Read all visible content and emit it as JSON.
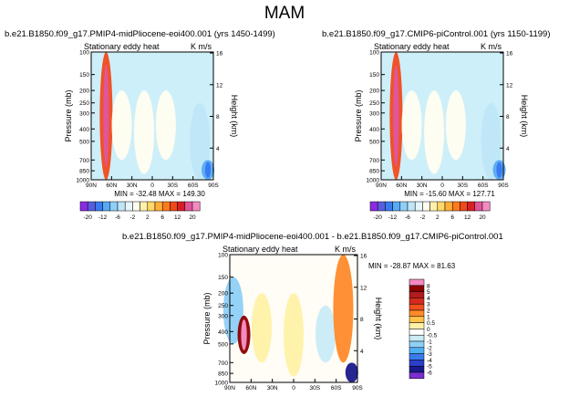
{
  "page_title": "MAM",
  "colors": {
    "background": "#ffffff",
    "ocean_fill": "#cdeffa",
    "axis": "#000000"
  },
  "chart_data": [
    {
      "type": "heatmap",
      "id": "panel-top-left",
      "title": "b.e21.B1850.f09_g17.PMIP4-midPliocene-eoi400.001 (yrs 1450-1499)",
      "subtitle_left": "Stationary eddy heat",
      "subtitle_right": "K m/s",
      "xlabel": "",
      "ylabel": "Pressure (mb)",
      "ylabel_right": "Height (km)",
      "x_ticks": [
        "90N",
        "60N",
        "30N",
        "0",
        "30S",
        "60S",
        "90S"
      ],
      "y_ticks": [
        "100",
        "150",
        "200",
        "250",
        "300",
        "400",
        "500",
        "700",
        "850",
        "1000"
      ],
      "y_right_ticks": [
        "16",
        "12",
        "8",
        "4"
      ],
      "stats": "MIN = -32.48   MAX = 149.30",
      "features": [
        {
          "lat": 68,
          "p_top": 100,
          "p_bot": 1000,
          "value": 12
        },
        {
          "lat": 45,
          "p_top": 200,
          "p_bot": 700,
          "value": 1
        },
        {
          "lat": 12,
          "p_top": 200,
          "p_bot": 900,
          "value": 0.5
        },
        {
          "lat": -20,
          "p_top": 200,
          "p_bot": 700,
          "value": 0.5
        },
        {
          "lat": -70,
          "p_top": 250,
          "p_bot": 1000,
          "value": -3
        },
        {
          "lat": -82,
          "p_top": 700,
          "p_bot": 1000,
          "value": -6
        }
      ]
    },
    {
      "type": "heatmap",
      "id": "panel-top-right",
      "title": "b.e21.B1850.f09_g17.CMIP6-piControl.001 (yrs 1150-1199)",
      "subtitle_left": "Stationary eddy heat",
      "subtitle_right": "K m/s",
      "xlabel": "",
      "ylabel": "Pressure (mb)",
      "ylabel_right": "Height (km)",
      "x_ticks": [
        "90N",
        "60N",
        "30N",
        "0",
        "30S",
        "60S",
        "90S"
      ],
      "y_ticks": [
        "100",
        "150",
        "200",
        "250",
        "300",
        "400",
        "500",
        "700",
        "850",
        "1000"
      ],
      "y_right_ticks": [
        "16",
        "12",
        "8",
        "4"
      ],
      "stats": "MIN = -15.60   MAX = 127.71",
      "features": [
        {
          "lat": 68,
          "p_top": 100,
          "p_bot": 1000,
          "value": 12
        },
        {
          "lat": 45,
          "p_top": 200,
          "p_bot": 700,
          "value": 1
        },
        {
          "lat": 12,
          "p_top": 200,
          "p_bot": 900,
          "value": 0.5
        },
        {
          "lat": -20,
          "p_top": 200,
          "p_bot": 700,
          "value": 0.5
        },
        {
          "lat": -72,
          "p_top": 250,
          "p_bot": 1000,
          "value": -3
        },
        {
          "lat": -84,
          "p_top": 700,
          "p_bot": 1000,
          "value": -6
        }
      ]
    },
    {
      "type": "heatmap",
      "id": "panel-difference",
      "title": "b.e21.B1850.f09_g17.PMIP4-midPliocene-eoi400.001 - b.e21.B1850.f09_g17.CMIP6-piControl.001",
      "subtitle_left": "Stationary eddy heat",
      "subtitle_right": "K m/s",
      "xlabel": "",
      "ylabel": "Pressure (mb)",
      "ylabel_right": "Height (km)",
      "x_ticks": [
        "90N",
        "60N",
        "30N",
        "0",
        "30S",
        "60S",
        "90S"
      ],
      "y_ticks": [
        "100",
        "150",
        "200",
        "250",
        "300",
        "400",
        "500",
        "700",
        "850",
        "1000"
      ],
      "y_right_ticks": [
        "16",
        "12",
        "8",
        "4"
      ],
      "stats": "MIN = -28.87   MAX = 81.63",
      "features": [
        {
          "lat": 85,
          "p_top": 150,
          "p_bot": 500,
          "value": -1
        },
        {
          "lat": 70,
          "p_top": 300,
          "p_bot": 600,
          "value": 6
        },
        {
          "lat": 45,
          "p_top": 200,
          "p_bot": 700,
          "value": 0.5
        },
        {
          "lat": 0,
          "p_top": 200,
          "p_bot": 900,
          "value": 0.5
        },
        {
          "lat": -45,
          "p_top": 250,
          "p_bot": 700,
          "value": -0.5
        },
        {
          "lat": -70,
          "p_top": 100,
          "p_bot": 700,
          "value": 2
        },
        {
          "lat": -82,
          "p_top": 700,
          "p_bot": 1000,
          "value": -5
        }
      ]
    }
  ],
  "colorbar_top": {
    "labels": [
      "-20",
      "-12",
      "-6",
      "-2",
      "2",
      "6",
      "12",
      "20"
    ],
    "colors": [
      "#8a2be2",
      "#5a5ce0",
      "#3a7af0",
      "#58aaf5",
      "#8fd0f7",
      "#bfe6f8",
      "#e6f6fb",
      "#fffdf0",
      "#fff2a8",
      "#ffd86a",
      "#ffae3a",
      "#ff7a1e",
      "#f04a1a",
      "#d81f26",
      "#e0569a",
      "#f48ac0"
    ]
  },
  "colorbar_diff": {
    "labels": [
      "8",
      "5",
      "4",
      "3",
      "2",
      "1",
      "0.5",
      "0",
      "-0.5",
      "-1",
      "-2",
      "-3",
      "-4",
      "-5",
      "-6"
    ],
    "colors": [
      "#f48ac0",
      "#8b0000",
      "#b21c1c",
      "#d62a1e",
      "#f0501c",
      "#ff8a2a",
      "#ffc24a",
      "#fff2a8",
      "#ffffff",
      "#c9ecf7",
      "#8fd0f7",
      "#4fb0f2",
      "#3a7af0",
      "#2a40c8",
      "#1a1a8c",
      "#7a2fd0"
    ]
  }
}
